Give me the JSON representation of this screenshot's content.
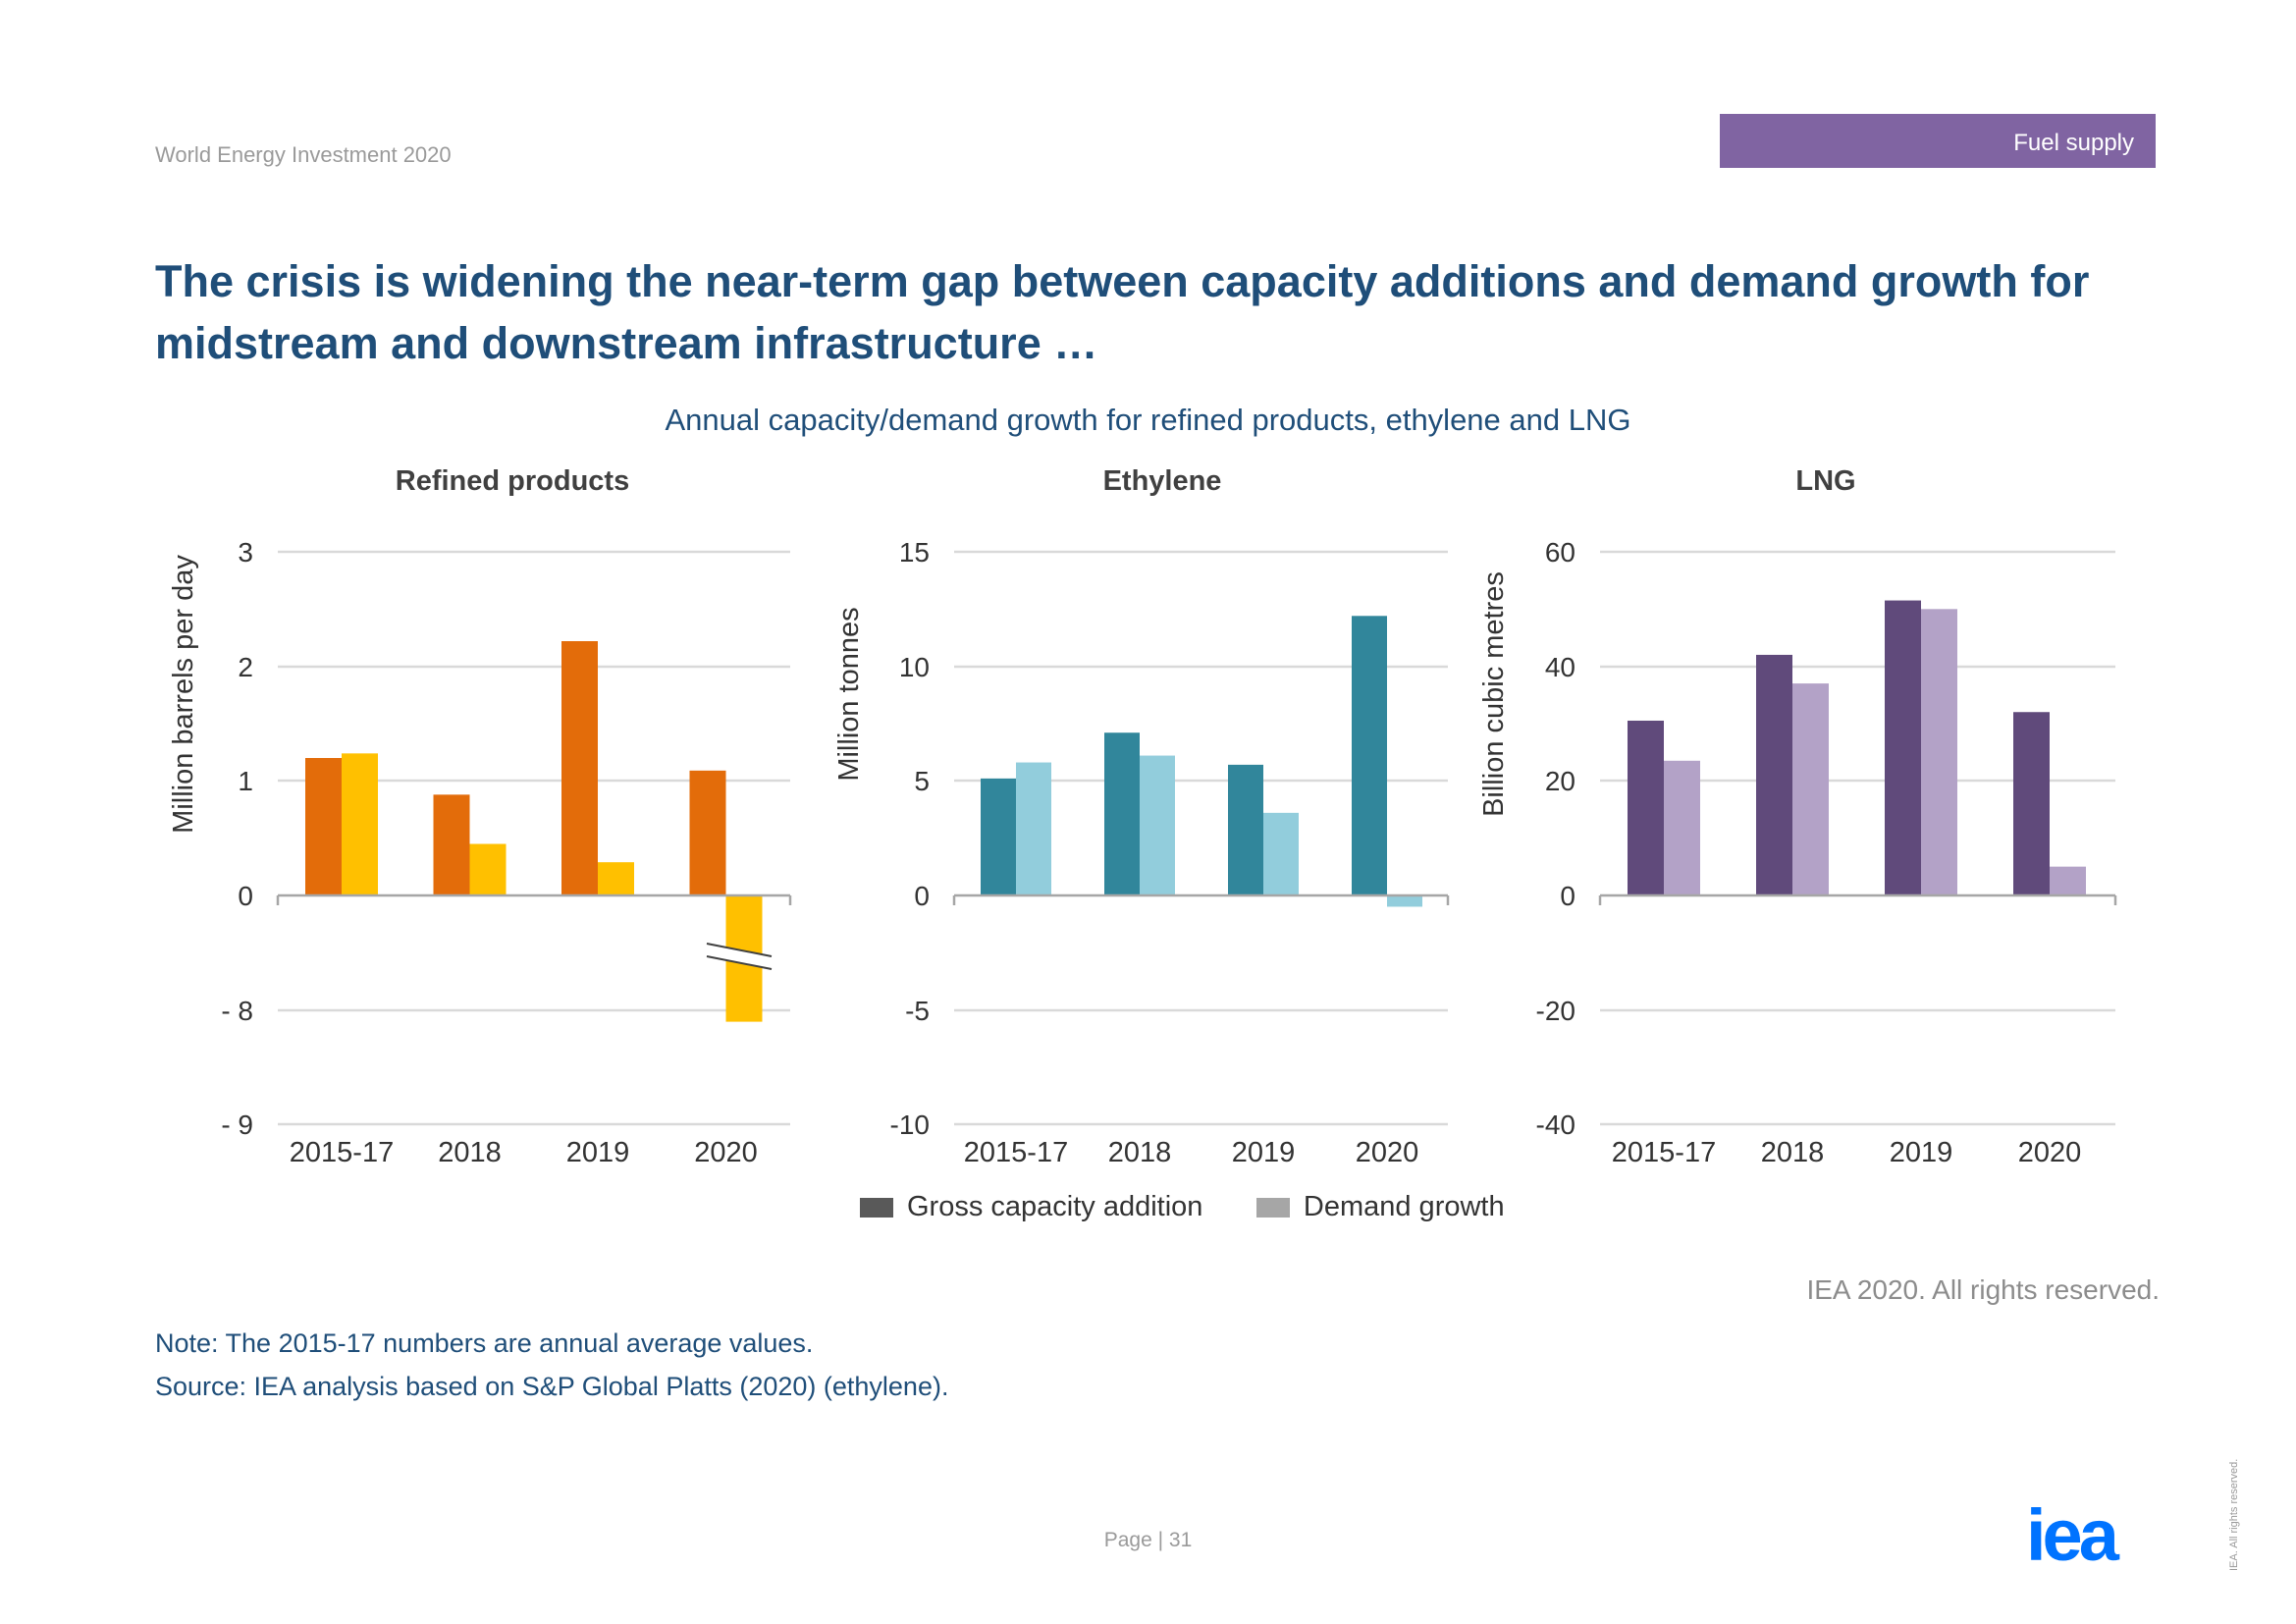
{
  "header": {
    "report_title": "World Energy Investment 2020",
    "section_badge": "Fuel supply"
  },
  "headline": "The crisis is widening the near-term gap between capacity additions and demand growth for midstream and downstream infrastructure …",
  "figure_title": "Annual capacity/demand growth for refined products, ethylene and LNG",
  "legend": {
    "capacity_label": "Gross capacity addition",
    "demand_label": "Demand growth",
    "capacity_color": "#595959",
    "demand_color": "#a6a6a6"
  },
  "chart_data": [
    {
      "type": "bar",
      "title": "Refined products",
      "ylabel": "Million barrels per day",
      "categories": [
        "2015-17",
        "2018",
        "2019",
        "2020"
      ],
      "y_tick_labels": [
        "3",
        "2",
        "1",
        "0",
        "- 8",
        "- 9"
      ],
      "axis_break": {
        "lower_segment": [
          -9,
          -8
        ],
        "upper_segment": [
          0,
          3
        ]
      },
      "series": [
        {
          "name": "Gross capacity addition",
          "color": "#e36c0a",
          "values": [
            1.2,
            0.88,
            2.22,
            1.09
          ]
        },
        {
          "name": "Demand growth",
          "color": "#ffc000",
          "values": [
            1.24,
            0.45,
            0.29,
            -8.1
          ]
        }
      ]
    },
    {
      "type": "bar",
      "title": "Ethylene",
      "ylabel": "Million tonnes",
      "categories": [
        "2015-17",
        "2018",
        "2019",
        "2020"
      ],
      "y_tick_labels": [
        "15",
        "10",
        "5",
        "0",
        "-5",
        "-10"
      ],
      "ylim": [
        -10,
        15
      ],
      "series": [
        {
          "name": "Gross capacity addition",
          "color": "#31869b",
          "values": [
            5.1,
            7.1,
            5.7,
            12.2
          ]
        },
        {
          "name": "Demand growth",
          "color": "#92cddc",
          "values": [
            5.8,
            6.1,
            3.6,
            -0.5
          ]
        }
      ]
    },
    {
      "type": "bar",
      "title": "LNG",
      "ylabel": "Billion cubic metres",
      "categories": [
        "2015-17",
        "2018",
        "2019",
        "2020"
      ],
      "y_tick_labels": [
        "60",
        "40",
        "20",
        "0",
        "-20",
        "-40"
      ],
      "ylim": [
        -40,
        60
      ],
      "series": [
        {
          "name": "Gross capacity addition",
          "color": "#604a7b",
          "values": [
            30.5,
            42,
            51.5,
            32
          ]
        },
        {
          "name": "Demand growth",
          "color": "#b3a2c7",
          "values": [
            23.5,
            37,
            50,
            5
          ]
        }
      ]
    }
  ],
  "footer": {
    "copyright": "IEA 2020. All rights reserved.",
    "note": "Note: The 2015-17 numbers are annual average values.",
    "source": "Source: IEA analysis based on S&P Global Platts (2020) (ethylene).",
    "page": "Page | 31",
    "logo_text": "iea",
    "side_rights": "IEA. All rights reserved.",
    "brand_color": "#0073ff"
  }
}
